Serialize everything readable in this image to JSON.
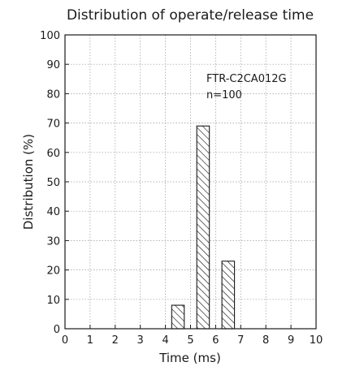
{
  "chart_data": {
    "type": "bar",
    "title": "Distribution of operate/release time",
    "xlabel": "Time (ms)",
    "ylabel": "Distribution (%)",
    "xlim": [
      0,
      10
    ],
    "ylim": [
      0,
      100
    ],
    "xticks": [
      0,
      1,
      2,
      3,
      4,
      5,
      6,
      7,
      8,
      9,
      10
    ],
    "yticks": [
      0,
      10,
      20,
      30,
      40,
      50,
      60,
      70,
      80,
      90,
      100
    ],
    "grid": true,
    "bars": [
      {
        "x_start": 4.25,
        "x_end": 4.75,
        "value": 8
      },
      {
        "x_start": 5.25,
        "x_end": 5.75,
        "value": 69
      },
      {
        "x_start": 6.25,
        "x_end": 6.75,
        "value": 23
      }
    ],
    "annotation": [
      "FTR-C2CA012G",
      "n=100"
    ],
    "bar_fill": "hatched",
    "colors": {
      "ink": "#1a1a1a",
      "grid": "#9a9a9a",
      "background": "#ffffff"
    }
  }
}
